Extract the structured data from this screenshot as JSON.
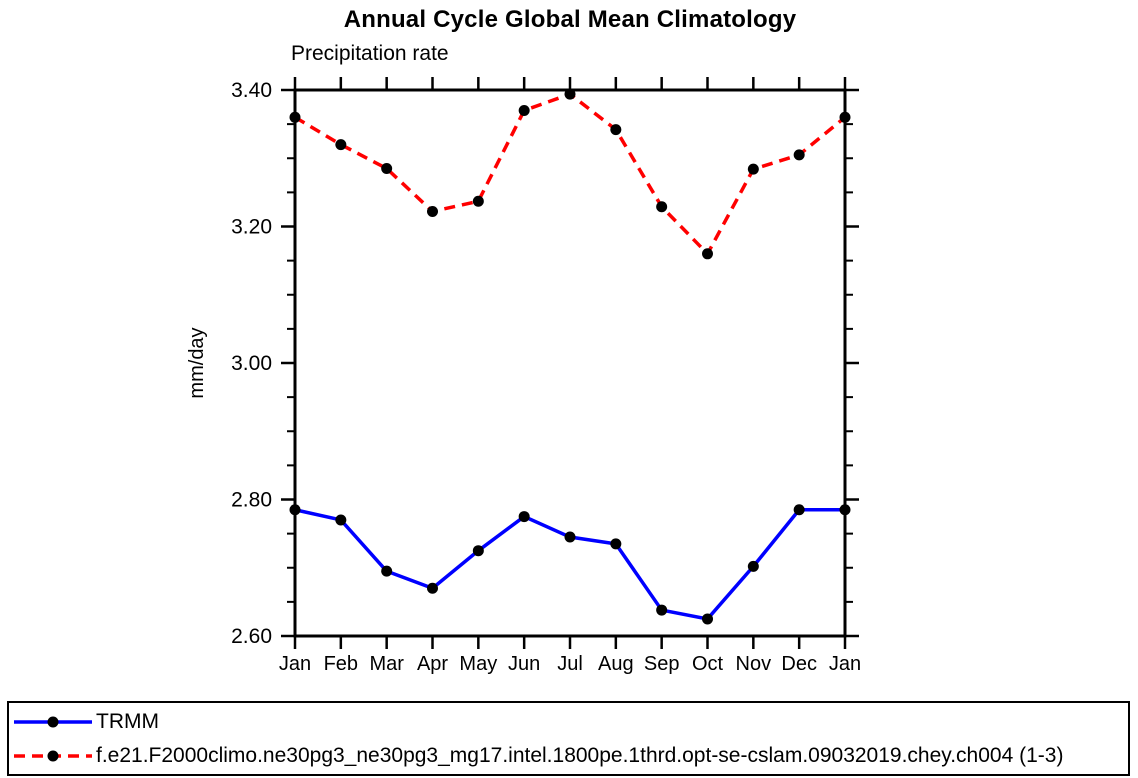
{
  "chart_data": {
    "type": "line",
    "title": "Annual Cycle Global Mean Climatology",
    "subtitle": "Precipitation rate",
    "xlabel": "",
    "ylabel": "mm/day",
    "categories": [
      "Jan",
      "Feb",
      "Mar",
      "Apr",
      "May",
      "Jun",
      "Jul",
      "Aug",
      "Sep",
      "Oct",
      "Nov",
      "Dec",
      "Jan"
    ],
    "ylim": [
      2.6,
      3.4
    ],
    "yticks_major": [
      2.6,
      2.8,
      3.0,
      3.2,
      3.4
    ],
    "ytick_labels": [
      "2.60",
      "2.80",
      "3.00",
      "3.20",
      "3.40"
    ],
    "ytick_minor_step": 0.05,
    "grid": false,
    "legend_position": "bottom-box-full-width",
    "axis_color": "#000000",
    "series": [
      {
        "name": "TRMM",
        "color": "#0000ff",
        "line_style": "solid",
        "marker": "filled-circle",
        "marker_color": "#000000",
        "values": [
          2.785,
          2.77,
          2.695,
          2.67,
          2.725,
          2.775,
          2.745,
          2.735,
          2.638,
          2.625,
          2.702,
          2.785,
          2.785
        ]
      },
      {
        "name": "f.e21.F2000climo.ne30pg3_ne30pg3_mg17.intel.1800pe.1thrd.opt-se-cslam.09032019.chey.ch004 (1-3)",
        "color": "#ff0000",
        "line_style": "dashed",
        "marker": "filled-circle",
        "marker_color": "#000000",
        "values": [
          3.36,
          3.32,
          3.285,
          3.222,
          3.237,
          3.37,
          3.394,
          3.342,
          3.229,
          3.16,
          3.284,
          3.305,
          3.36
        ]
      }
    ]
  }
}
